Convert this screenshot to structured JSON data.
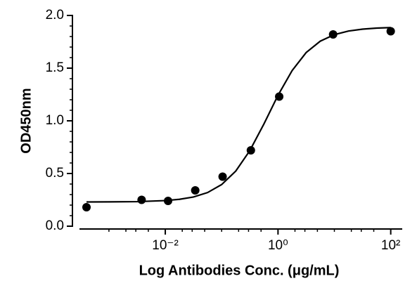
{
  "chart_data": {
    "type": "scatter",
    "x_label": "Log Antibodies Conc. (μg/mL)",
    "y_label": "OD450nm",
    "log_x": true,
    "xlim": [
      0.0003,
      160
    ],
    "ylim": [
      0,
      2
    ],
    "xticks": [
      {
        "value": 0.01,
        "label": "10⁻²"
      },
      {
        "value": 1,
        "label": "10⁰"
      },
      {
        "value": 100,
        "label": "10²"
      }
    ],
    "xminorticks": [
      0.001,
      0.002,
      0.003,
      0.005,
      0.02,
      0.03,
      0.05,
      0.1,
      0.2,
      0.3,
      0.5,
      2,
      3,
      5,
      10,
      20,
      30,
      50
    ],
    "yticks": [
      {
        "value": 0,
        "label": "0.0"
      },
      {
        "value": 0.5,
        "label": "0.5"
      },
      {
        "value": 1,
        "label": "1.0"
      },
      {
        "value": 1.5,
        "label": "1.5"
      },
      {
        "value": 2,
        "label": "2.0"
      }
    ],
    "yminorticks": [
      0.1,
      0.2,
      0.3,
      0.4,
      0.6,
      0.7,
      0.8,
      0.9,
      1.1,
      1.2,
      1.3,
      1.4,
      1.6,
      1.7,
      1.8,
      1.9
    ],
    "series": [
      {
        "style": "markers",
        "color": "#000000",
        "x": [
          0.0004,
          0.0038,
          0.0112,
          0.034,
          0.104,
          0.33,
          1.05,
          9.5,
          100
        ],
        "values": [
          0.18,
          0.25,
          0.24,
          0.34,
          0.47,
          0.72,
          1.23,
          1.82,
          1.85
        ]
      },
      {
        "style": "line",
        "color": "#000000",
        "x": [
          0.0004,
          0.001,
          0.00316,
          0.01,
          0.0178,
          0.0316,
          0.0562,
          0.1,
          0.178,
          0.316,
          0.562,
          1,
          1.78,
          3.16,
          5.62,
          10,
          17.8,
          31.6,
          56.2,
          100
        ],
        "values": [
          0.23,
          0.231,
          0.233,
          0.243,
          0.255,
          0.277,
          0.319,
          0.395,
          0.523,
          0.717,
          0.97,
          1.242,
          1.477,
          1.648,
          1.756,
          1.818,
          1.852,
          1.87,
          1.88,
          1.885
        ]
      }
    ]
  }
}
